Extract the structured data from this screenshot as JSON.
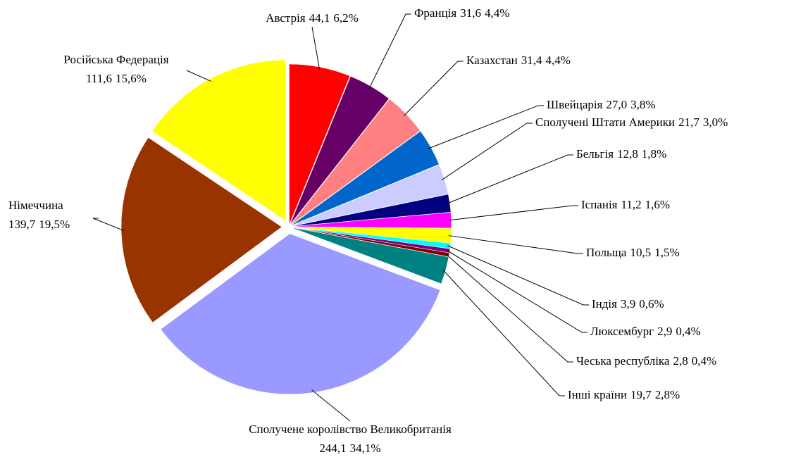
{
  "chart_data": {
    "type": "pie",
    "categories": [
      "Австрія",
      "Франція",
      "Казахстан",
      "Швейцарія",
      "Сполучені Штати Америки",
      "Бельгія",
      "Іспанія",
      "Польща",
      "Індія",
      "Люксембург",
      "Чеська республіка",
      "Інші країни",
      "Сполучене королівство Великобританія",
      "Німеччина",
      "Російська Федерація"
    ],
    "values": [
      44.1,
      31.6,
      31.4,
      27.0,
      21.7,
      12.8,
      11.2,
      10.5,
      3.9,
      2.9,
      2.8,
      19.7,
      244.1,
      139.7,
      111.6
    ],
    "value_labels": [
      "44,1",
      "31,6",
      "31,4",
      "27,0",
      "21,7",
      "12,8",
      "11,2",
      "10,5",
      "3,9",
      "2,9",
      "2,8",
      "19,7",
      "244,1",
      "139,7",
      "111,6"
    ],
    "percents": [
      6.2,
      4.4,
      4.4,
      3.8,
      3.0,
      1.8,
      1.6,
      1.5,
      0.6,
      0.4,
      0.4,
      2.8,
      34.1,
      19.5,
      15.6
    ],
    "percent_labels": [
      "6,2%",
      "4,4%",
      "4,4%",
      "3,8%",
      "3,0%",
      "1,8%",
      "1,6%",
      "1,5%",
      "0,6%",
      "0,4%",
      "0,4%",
      "2,8%",
      "34,1%",
      "19,5%",
      "15,6%"
    ],
    "colors": [
      "#ff0000",
      "#660066",
      "#ff8080",
      "#0066cc",
      "#ccccff",
      "#000080",
      "#ff00ff",
      "#ffff00",
      "#00ffff",
      "#800080",
      "#800000",
      "#008080",
      "#9999ff",
      "#993300",
      "#ffff00"
    ]
  }
}
